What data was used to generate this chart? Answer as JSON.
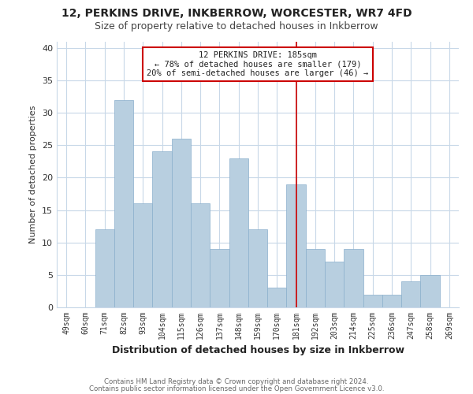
{
  "title": "12, PERKINS DRIVE, INKBERROW, WORCESTER, WR7 4FD",
  "subtitle": "Size of property relative to detached houses in Inkberrow",
  "xlabel": "Distribution of detached houses by size in Inkberrow",
  "ylabel": "Number of detached properties",
  "bar_labels": [
    "49sqm",
    "60sqm",
    "71sqm",
    "82sqm",
    "93sqm",
    "104sqm",
    "115sqm",
    "126sqm",
    "137sqm",
    "148sqm",
    "159sqm",
    "170sqm",
    "181sqm",
    "192sqm",
    "203sqm",
    "214sqm",
    "225sqm",
    "236sqm",
    "247sqm",
    "258sqm",
    "269sqm"
  ],
  "bar_values": [
    0,
    0,
    12,
    32,
    16,
    24,
    26,
    16,
    9,
    23,
    12,
    3,
    19,
    9,
    7,
    9,
    2,
    2,
    4,
    5,
    0
  ],
  "bar_color": "#b8cfe0",
  "bar_edge_color": "#8aafcc",
  "vline_x": 12,
  "vline_color": "#cc0000",
  "annotation_title": "12 PERKINS DRIVE: 185sqm",
  "annotation_line1": "← 78% of detached houses are smaller (179)",
  "annotation_line2": "20% of semi-detached houses are larger (46) →",
  "annotation_box_color": "#ffffff",
  "annotation_box_edge": "#cc0000",
  "ylim": [
    0,
    41
  ],
  "yticks": [
    0,
    5,
    10,
    15,
    20,
    25,
    30,
    35,
    40
  ],
  "footer1": "Contains HM Land Registry data © Crown copyright and database right 2024.",
  "footer2": "Contains public sector information licensed under the Open Government Licence v3.0.",
  "background_color": "#ffffff",
  "grid_color": "#c8d8e8",
  "title_fontsize": 10,
  "subtitle_fontsize": 9,
  "xlabel_fontsize": 9,
  "ylabel_fontsize": 8
}
